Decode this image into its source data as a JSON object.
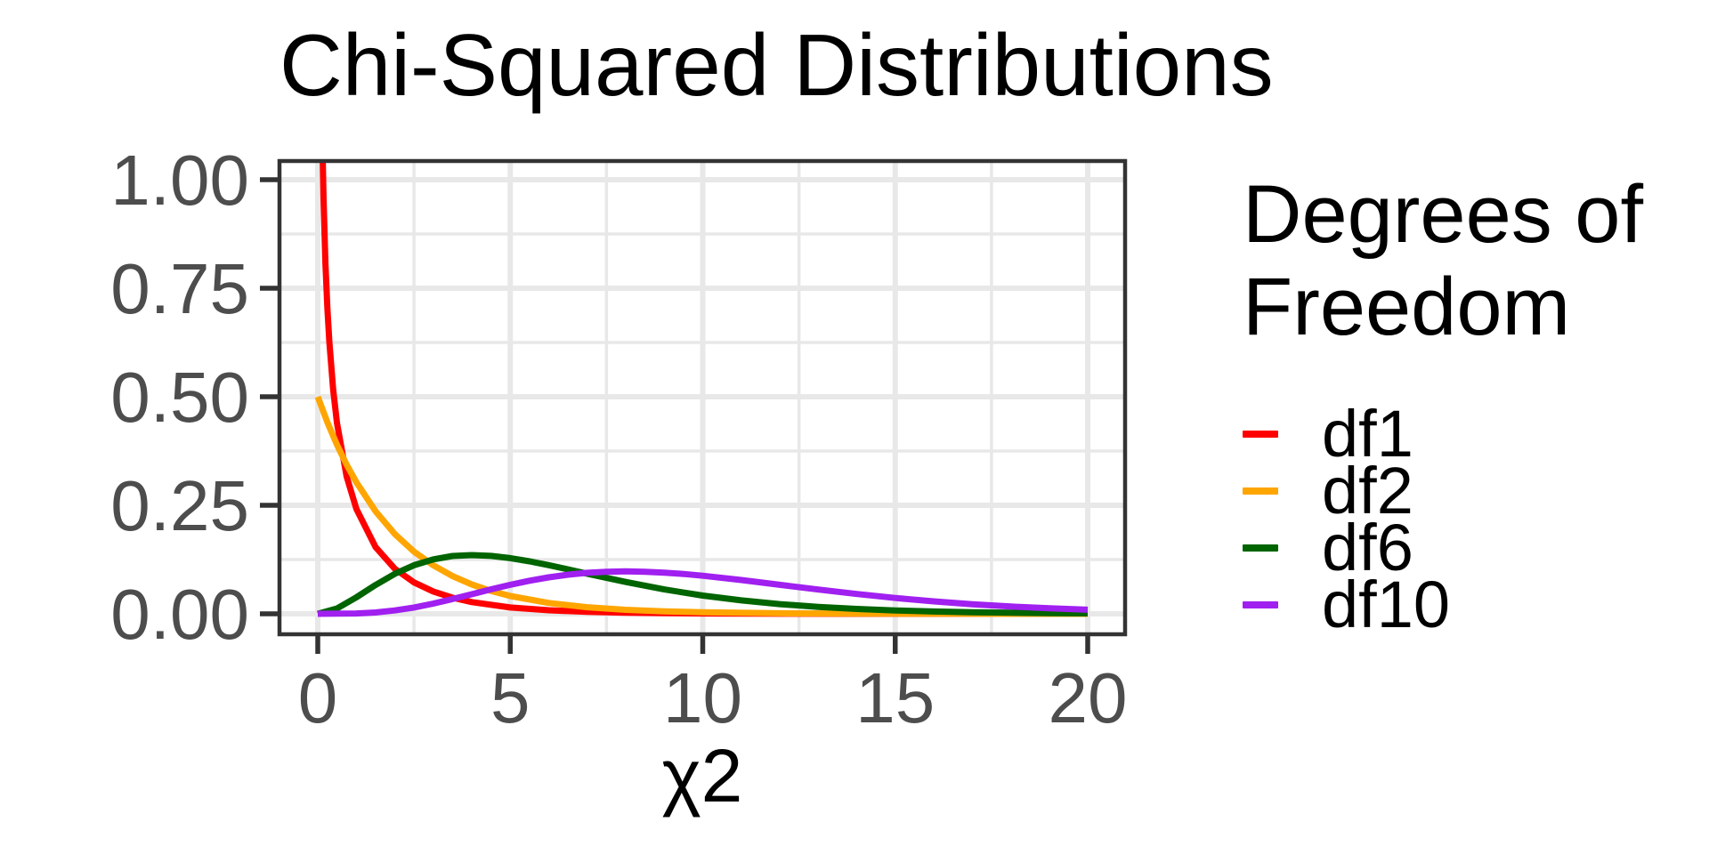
{
  "page": {
    "background": "#FFFFFF"
  },
  "chart_data": {
    "type": "line",
    "title": "Chi-Squared Distributions",
    "xlabel": "χ2",
    "ylabel": "",
    "xlim": [
      0,
      20
    ],
    "ylim": [
      0,
      1.0
    ],
    "x_ticks": [
      0,
      5,
      10,
      15,
      20
    ],
    "x_tick_labels": [
      "0",
      "5",
      "10",
      "15",
      "20"
    ],
    "y_ticks": [
      0,
      0.25,
      0.5,
      0.75,
      1.0
    ],
    "y_tick_labels": [
      "0.00",
      "0.25",
      "0.50",
      "0.75",
      "1.00"
    ],
    "grid": "major+minor",
    "legend_position": "right",
    "series": [
      {
        "name": "df1",
        "color": "#FF0000",
        "x": [
          0.085,
          0.1,
          0.12,
          0.15,
          0.2,
          0.25,
          0.3,
          0.4,
          0.5,
          0.75,
          1,
          1.5,
          2,
          2.5,
          3,
          3.5,
          4,
          5,
          6,
          7,
          8,
          9,
          10,
          12,
          14,
          16,
          18,
          20
        ],
        "y": [
          1.312,
          1.2,
          1.0846,
          0.9556,
          0.8071,
          0.7041,
          0.6269,
          0.5164,
          0.4394,
          0.3166,
          0.242,
          0.1539,
          0.1038,
          0.0723,
          0.0514,
          0.0371,
          0.027,
          0.0146,
          0.0081,
          0.0046,
          0.0026,
          0.0015,
          0.0009,
          0.0003,
          0.0001,
          0.0001,
          0,
          0
        ]
      },
      {
        "name": "df2",
        "color": "#FFA500",
        "x": [
          0,
          0.25,
          0.5,
          0.75,
          1,
          1.5,
          2,
          2.5,
          3,
          3.5,
          4,
          4.5,
          5,
          6,
          7,
          8,
          9,
          10,
          12,
          14,
          16,
          18,
          20
        ],
        "y": [
          0.5,
          0.4412,
          0.3894,
          0.3436,
          0.3033,
          0.2362,
          0.1839,
          0.1433,
          0.1116,
          0.0869,
          0.0677,
          0.0527,
          0.041,
          0.0249,
          0.0151,
          0.0092,
          0.0056,
          0.0034,
          0.0012,
          0.0005,
          0.0002,
          0.0001,
          0
        ]
      },
      {
        "name": "df6",
        "color": "#006400",
        "x": [
          0,
          0.5,
          1,
          1.5,
          2,
          2.5,
          3,
          3.5,
          4,
          4.5,
          5,
          5.5,
          6,
          6.5,
          7,
          7.5,
          8,
          9,
          10,
          11,
          12,
          13,
          14,
          15,
          16,
          17,
          18,
          19,
          20
        ],
        "y": [
          0,
          0.0122,
          0.0379,
          0.0664,
          0.092,
          0.1119,
          0.1255,
          0.1331,
          0.1353,
          0.1334,
          0.1283,
          0.1208,
          0.112,
          0.1024,
          0.0925,
          0.0827,
          0.0733,
          0.0562,
          0.0421,
          0.0309,
          0.0223,
          0.0159,
          0.0112,
          0.0078,
          0.0054,
          0.0037,
          0.0025,
          0.0017,
          0.0011
        ]
      },
      {
        "name": "df10",
        "color": "#A020F0",
        "x": [
          0,
          1,
          1.5,
          2,
          2.5,
          3,
          3.5,
          4,
          4.5,
          5,
          5.5,
          6,
          6.5,
          7,
          7.5,
          8,
          8.5,
          9,
          9.5,
          10,
          11,
          12,
          13,
          14,
          15,
          16,
          17,
          18,
          19,
          20
        ],
        "y": [
          0,
          0.0008,
          0.0031,
          0.0077,
          0.0146,
          0.0235,
          0.034,
          0.0451,
          0.0563,
          0.0668,
          0.0762,
          0.084,
          0.0901,
          0.0944,
          0.0969,
          0.0977,
          0.097,
          0.0948,
          0.0918,
          0.0877,
          0.0779,
          0.0669,
          0.0559,
          0.0456,
          0.0365,
          0.0286,
          0.0221,
          0.0168,
          0.0127,
          0.0095
        ]
      }
    ]
  },
  "legend": {
    "title": "Degrees of Freedom",
    "items": [
      {
        "label": "df1",
        "color": "#FF0000"
      },
      {
        "label": "df2",
        "color": "#FFA500"
      },
      {
        "label": "df6",
        "color": "#006400"
      },
      {
        "label": "df10",
        "color": "#A020F0"
      }
    ]
  },
  "styles": {
    "grid_color": "#E8E8E8",
    "axis_text_color": "#4D4D4D",
    "panel_border_color": "#333333",
    "tick_color": "#333333",
    "title_color": "#000000"
  }
}
